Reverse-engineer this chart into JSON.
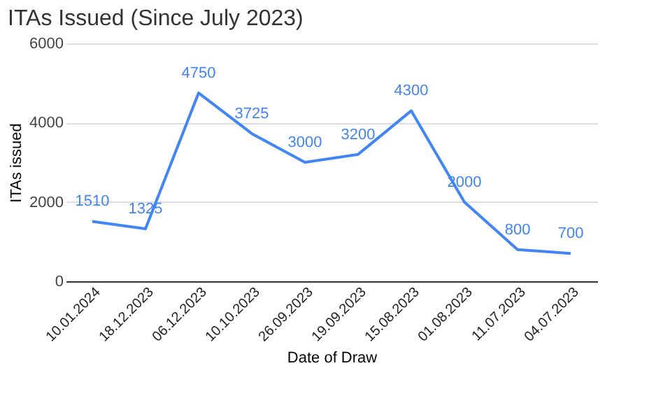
{
  "chart_data": {
    "type": "line",
    "title": "ITAs Issued (Since July 2023)",
    "xlabel": "Date of Draw",
    "ylabel": "ITAs issued",
    "categories": [
      "10.01.2024",
      "18.12.2023",
      "06.12.2023",
      "10.10.2023",
      "26.09.2023",
      "19.09.2023",
      "15.08.2023",
      "01.08.2023",
      "11.07.2023",
      "04.07.2023"
    ],
    "series": [
      {
        "color": "#4285f4",
        "values": [
          1510,
          1325,
          4750,
          3725,
          3000,
          3200,
          4300,
          2000,
          800,
          700
        ]
      }
    ],
    "ylim": [
      0,
      6000
    ],
    "yticks": [
      0,
      2000,
      4000,
      6000
    ],
    "grid": "y",
    "data_labels": true,
    "marker": "none",
    "line_style": "solid"
  }
}
